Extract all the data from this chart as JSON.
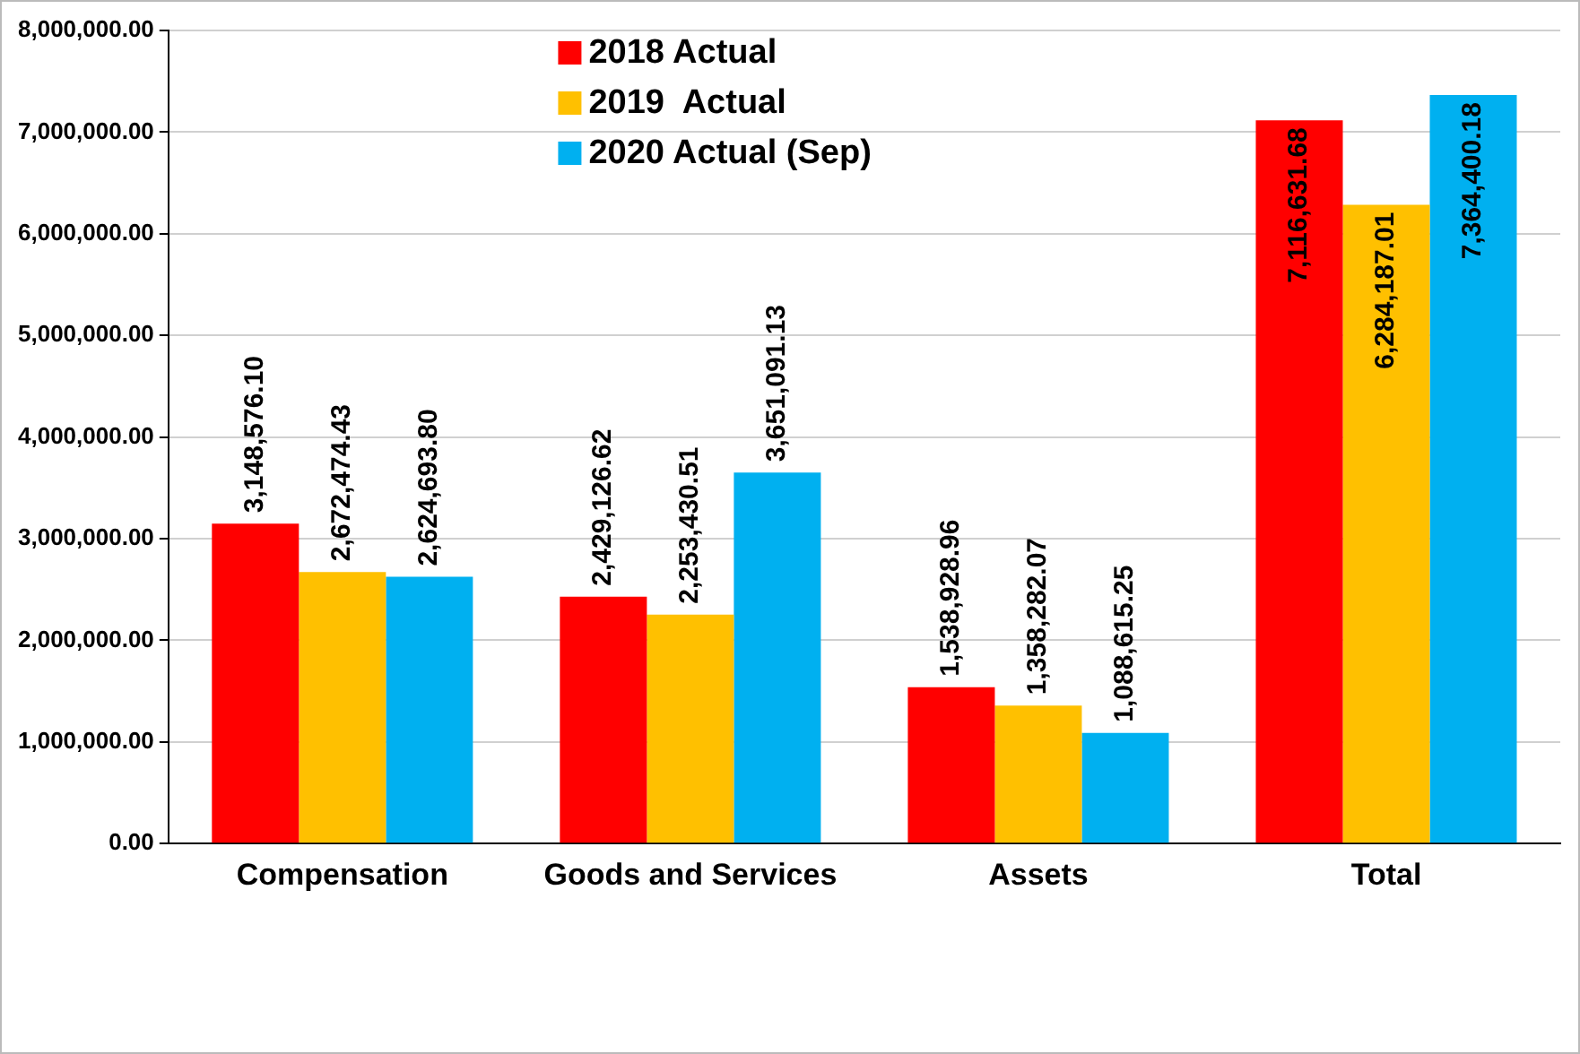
{
  "chart_data": {
    "type": "bar",
    "categories": [
      "Compensation",
      "Goods and Services",
      "Assets",
      "Total"
    ],
    "series": [
      {
        "name": "2018 Actual",
        "color": "#ff0000",
        "values": [
          3148576.1,
          2429126.62,
          1538928.96,
          7116631.68
        ],
        "value_labels": [
          "3,148,576.10",
          "2,429,126.62",
          "1,538,928.96",
          "7,116,631.68"
        ]
      },
      {
        "name": "2019  Actual",
        "color": "#ffc000",
        "values": [
          2672474.43,
          2253430.51,
          1358282.07,
          6284187.01
        ],
        "value_labels": [
          "2,672,474.43",
          "2,253,430.51",
          "1,358,282.07",
          "6,284,187.01"
        ]
      },
      {
        "name": "2020 Actual (Sep)",
        "color": "#00b0f0",
        "values": [
          2624693.8,
          3651091.13,
          1088615.25,
          7364400.18
        ],
        "value_labels": [
          "2,624,693.80",
          "3,651,091.13",
          "1,088,615.25",
          "7,364,400.18"
        ]
      }
    ],
    "ylim": [
      0,
      8000000
    ],
    "yticks": [
      {
        "value": 0,
        "label": "0.00"
      },
      {
        "value": 1000000,
        "label": "1,000,000.00"
      },
      {
        "value": 2000000,
        "label": "2,000,000.00"
      },
      {
        "value": 3000000,
        "label": "3,000,000.00"
      },
      {
        "value": 4000000,
        "label": "4,000,000.00"
      },
      {
        "value": 5000000,
        "label": "5,000,000.00"
      },
      {
        "value": 6000000,
        "label": "6,000,000.00"
      },
      {
        "value": 7000000,
        "label": "7,000,000.00"
      },
      {
        "value": 8000000,
        "label": "8,000,000.00"
      }
    ],
    "grid": "y",
    "legend": "top"
  }
}
